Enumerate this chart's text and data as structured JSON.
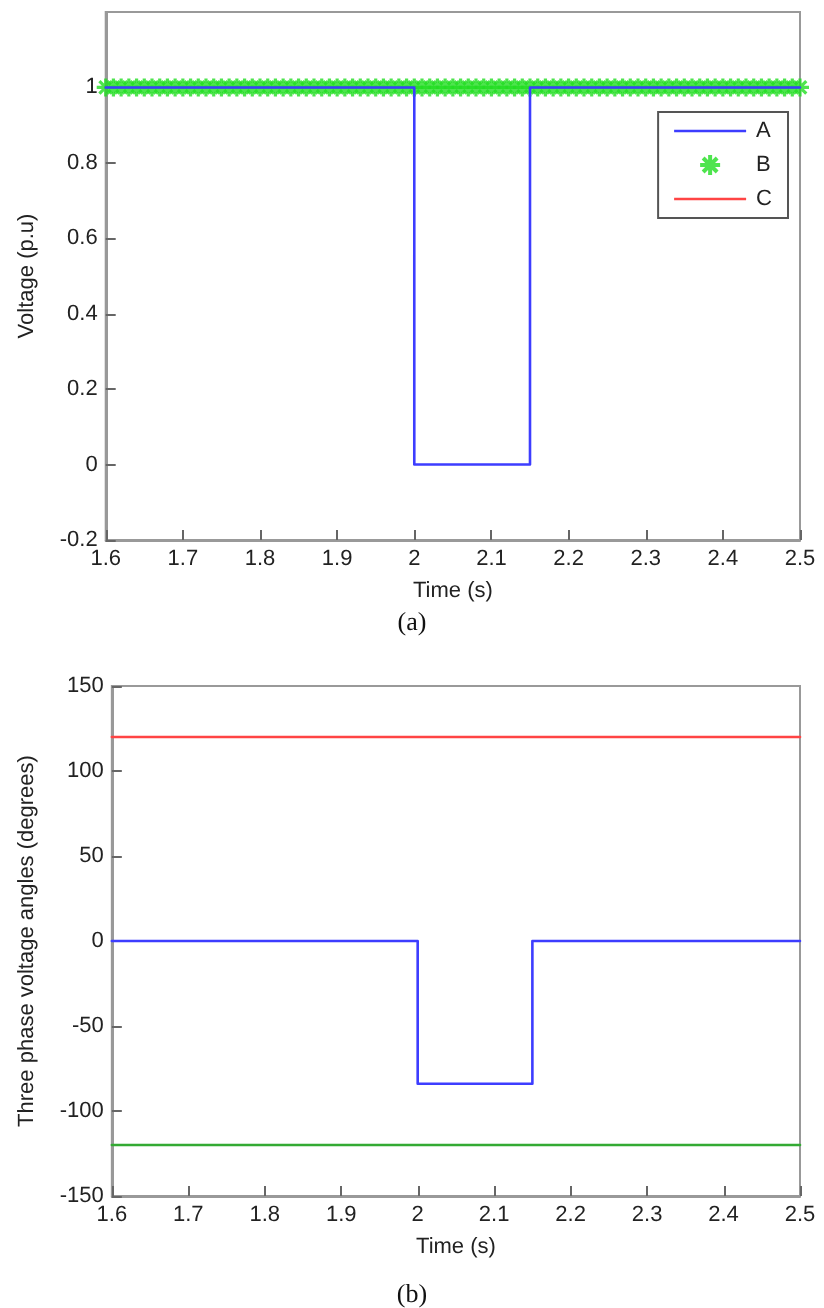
{
  "chart_data": [
    {
      "type": "line",
      "xlabel": "Time (s)",
      "ylabel": "Voltage (p.u)",
      "xlim": [
        1.6,
        2.5
      ],
      "xticks": [
        1.6,
        1.7,
        1.8,
        1.9,
        2,
        2.1,
        2.2,
        2.3,
        2.4,
        2.5
      ],
      "ylim": [
        -0.2,
        1.2
      ],
      "yticks": [
        -0.2,
        0,
        0.2,
        0.4,
        0.6,
        0.8,
        1
      ],
      "grid": false,
      "legend": "top right",
      "annotations": [
        "(a)"
      ],
      "series": [
        {
          "name": "A",
          "color": "#3d3dff",
          "x": [
            1.6,
            2.0,
            2.0,
            2.15,
            2.15,
            2.5
          ],
          "values": [
            1,
            1,
            0,
            0,
            1,
            1
          ]
        },
        {
          "name": "B",
          "type": "scatter",
          "marker": "cross",
          "color": "#22dd22",
          "x": [
            1.6,
            1.61,
            1.62,
            1.63,
            1.64,
            1.65,
            1.66,
            1.67,
            1.68,
            1.69,
            1.7,
            1.71,
            1.72,
            1.73,
            1.74,
            1.75,
            1.76,
            1.77,
            1.78,
            1.79,
            1.8,
            1.81,
            1.82,
            1.83,
            1.84,
            1.85,
            1.86,
            1.87,
            1.88,
            1.89,
            1.9,
            1.91,
            1.92,
            1.93,
            1.94,
            1.95,
            1.96,
            1.97,
            1.98,
            1.99,
            2.0,
            2.01,
            2.02,
            2.03,
            2.04,
            2.05,
            2.06,
            2.07,
            2.08,
            2.09,
            2.1,
            2.11,
            2.12,
            2.13,
            2.14,
            2.15,
            2.16,
            2.17,
            2.18,
            2.19,
            2.2,
            2.21,
            2.22,
            2.23,
            2.24,
            2.25,
            2.26,
            2.27,
            2.28,
            2.29,
            2.3,
            2.31,
            2.32,
            2.33,
            2.34,
            2.35,
            2.36,
            2.37,
            2.38,
            2.39,
            2.4,
            2.41,
            2.42,
            2.43,
            2.44,
            2.45,
            2.46,
            2.47,
            2.48,
            2.49,
            2.5
          ],
          "values": [
            1,
            1,
            1,
            1,
            1,
            1,
            1,
            1,
            1,
            1,
            1,
            1,
            1,
            1,
            1,
            1,
            1,
            1,
            1,
            1,
            1,
            1,
            1,
            1,
            1,
            1,
            1,
            1,
            1,
            1,
            1,
            1,
            1,
            1,
            1,
            1,
            1,
            1,
            1,
            1,
            1,
            1,
            1,
            1,
            1,
            1,
            1,
            1,
            1,
            1,
            1,
            1,
            1,
            1,
            1,
            1,
            1,
            1,
            1,
            1,
            1,
            1,
            1,
            1,
            1,
            1,
            1,
            1,
            1,
            1,
            1,
            1,
            1,
            1,
            1,
            1,
            1,
            1,
            1,
            1,
            1,
            1,
            1,
            1,
            1,
            1,
            1,
            1,
            1,
            1,
            1
          ]
        },
        {
          "name": "C",
          "color": "#ff4444"
        }
      ]
    },
    {
      "type": "line",
      "xlabel": "Time (s)",
      "ylabel": "Three phase voltage angles (degrees)",
      "xlim": [
        1.6,
        2.5
      ],
      "xticks": [
        1.6,
        1.7,
        1.8,
        1.9,
        2,
        2.1,
        2.2,
        2.3,
        2.4,
        2.5
      ],
      "ylim": [
        -150,
        150
      ],
      "yticks": [
        -150,
        -100,
        -50,
        0,
        50,
        100,
        150
      ],
      "grid": false,
      "legend": false,
      "annotations": [
        "(b)"
      ],
      "series": [
        {
          "color": "#ff4444",
          "x": [
            1.6,
            2.5
          ],
          "values": [
            120,
            120
          ]
        },
        {
          "color": "#3d3dff",
          "x": [
            1.6,
            2.0,
            2.0,
            2.15,
            2.15,
            2.5
          ],
          "values": [
            0,
            0,
            -84,
            -84,
            0,
            0
          ]
        },
        {
          "color": "#33aa33",
          "x": [
            1.6,
            2.5
          ],
          "values": [
            -120,
            -120
          ]
        }
      ]
    }
  ]
}
